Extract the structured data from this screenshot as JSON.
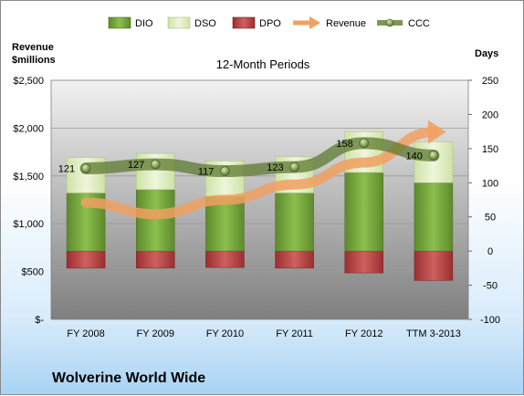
{
  "chart_data": {
    "type": "bar",
    "title": "12-Month Periods",
    "company": "Wolverine World Wide",
    "categories": [
      "FY 2008",
      "FY 2009",
      "FY 2010",
      "FY 2011",
      "FY 2012",
      "TTM 3-2013"
    ],
    "left_axis": {
      "label_line1": "Revenue",
      "label_line2": "$millions",
      "range": [
        0,
        2500
      ],
      "ticks": [
        {
          "v": 2500,
          "t": "$2,500"
        },
        {
          "v": 2000,
          "t": "$2,000"
        },
        {
          "v": 1500,
          "t": "$1,500"
        },
        {
          "v": 1000,
          "t": "$1,000"
        },
        {
          "v": 500,
          "t": "$500"
        },
        {
          "v": 0,
          "t": "$-"
        }
      ]
    },
    "right_axis": {
      "label": "Days",
      "range": [
        -100,
        250
      ],
      "ticks": [
        {
          "v": 250,
          "t": "250"
        },
        {
          "v": 200,
          "t": "200"
        },
        {
          "v": 150,
          "t": "150"
        },
        {
          "v": 100,
          "t": "100"
        },
        {
          "v": 50,
          "t": "50"
        },
        {
          "v": 0,
          "t": "0"
        },
        {
          "v": -50,
          "t": "-50"
        },
        {
          "v": -100,
          "t": "-100"
        }
      ]
    },
    "series": [
      {
        "name": "DIO",
        "axis": "right",
        "values": [
          85,
          90,
          80,
          85,
          115,
          100
        ],
        "color": "#70983a"
      },
      {
        "name": "DSO",
        "axis": "right",
        "values": [
          52,
          53,
          52,
          53,
          60,
          60
        ],
        "color": "#d8e8b8"
      },
      {
        "name": "DPO",
        "axis": "right",
        "values": [
          -25,
          -25,
          -24,
          -25,
          -32,
          -43
        ],
        "color": "#b03a3a"
      },
      {
        "name": "Revenue",
        "axis": "left",
        "values": [
          1220,
          1100,
          1250,
          1410,
          1640,
          1960
        ],
        "color": "#f0a060"
      },
      {
        "name": "CCC",
        "axis": "right",
        "values": [
          121,
          127,
          117,
          123,
          158,
          140
        ],
        "color": "#5e7a30"
      }
    ],
    "ccc_labels": [
      "121",
      "127",
      "117",
      "123",
      "158",
      "140"
    ],
    "legend_position": "top",
    "grid": true
  }
}
